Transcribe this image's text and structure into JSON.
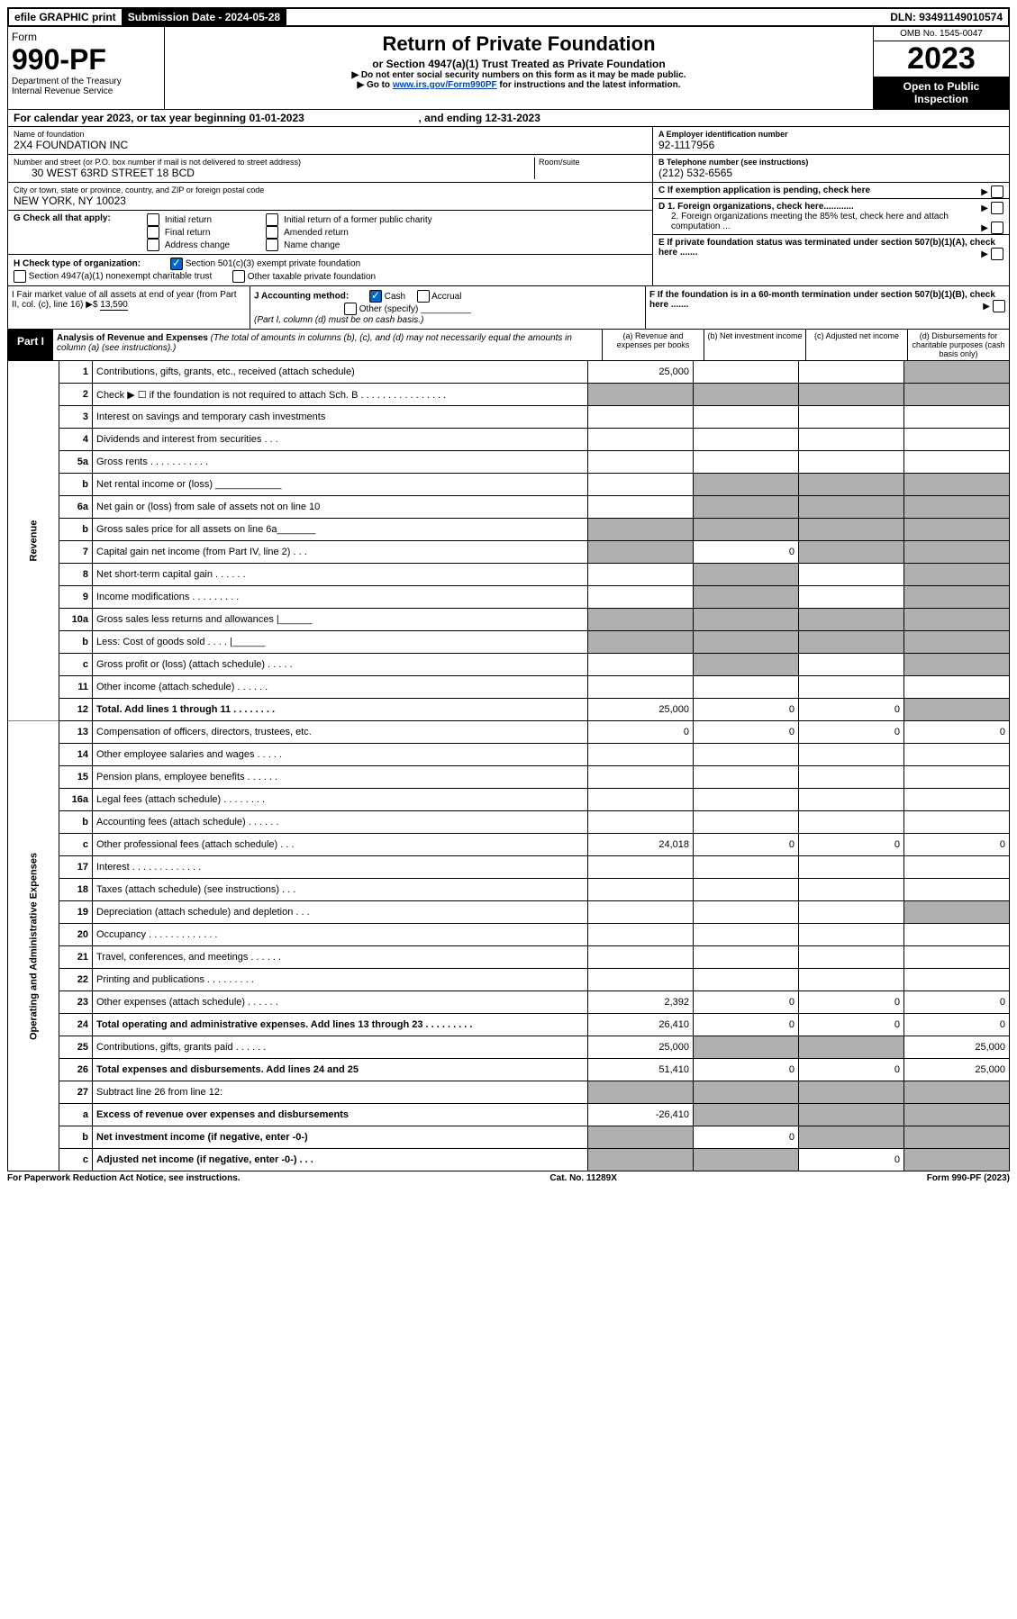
{
  "header": {
    "efile": "efile GRAPHIC print",
    "submission_label": "Submission Date - 2024-05-28",
    "dln": "DLN: 93491149010574"
  },
  "form": {
    "form_word": "Form",
    "number": "990-PF",
    "dept1": "Department of the Treasury",
    "dept2": "Internal Revenue Service",
    "title": "Return of Private Foundation",
    "subtitle": "or Section 4947(a)(1) Trust Treated as Private Foundation",
    "note1": "▶ Do not enter social security numbers on this form as it may be made public.",
    "note2_pre": "▶ Go to ",
    "note2_link": "www.irs.gov/Form990PF",
    "note2_post": " for instructions and the latest information.",
    "omb": "OMB No. 1545-0047",
    "year": "2023",
    "inspect1": "Open to Public",
    "inspect2": "Inspection"
  },
  "cal": {
    "text_pre": "For calendar year 2023, or tax year beginning 01-01-2023",
    "text_mid": ", and ending 12-31-2023"
  },
  "ident": {
    "name_lbl": "Name of foundation",
    "name": "2X4 FOUNDATION INC",
    "addr_lbl": "Number and street (or P.O. box number if mail is not delivered to street address)",
    "room_lbl": "Room/suite",
    "addr": "30 WEST 63RD STREET 18 BCD",
    "city_lbl": "City or town, state or province, country, and ZIP or foreign postal code",
    "city": "NEW YORK, NY  10023",
    "a_lbl": "A Employer identification number",
    "a_val": "92-1117956",
    "b_lbl": "B Telephone number (see instructions)",
    "b_val": "(212) 532-6565",
    "c_lbl": "C If exemption application is pending, check here",
    "d1_lbl": "D 1. Foreign organizations, check here............",
    "d2_lbl": "2. Foreign organizations meeting the 85% test, check here and attach computation ...",
    "e_lbl": "E  If private foundation status was terminated under section 507(b)(1)(A), check here .......",
    "f_lbl": "F  If the foundation is in a 60-month termination under section 507(b)(1)(B), check here .......",
    "g_lbl": "G Check all that apply:",
    "g_opts": [
      "Initial return",
      "Final return",
      "Address change",
      "Initial return of a former public charity",
      "Amended return",
      "Name change"
    ],
    "h_lbl": "H Check type of organization:",
    "h_opt1": "Section 501(c)(3) exempt private foundation",
    "h_opt2": "Section 4947(a)(1) nonexempt charitable trust",
    "h_opt3": "Other taxable private foundation",
    "i_lbl": "I Fair market value of all assets at end of year (from Part II, col. (c), line 16)",
    "i_val": "13,590",
    "j_lbl": "J Accounting method:",
    "j_cash": "Cash",
    "j_accr": "Accrual",
    "j_other": "Other (specify)",
    "j_note": "(Part I, column (d) must be on cash basis.)"
  },
  "part1": {
    "tag": "Part I",
    "title": "Analysis of Revenue and Expenses",
    "title_note": " (The total of amounts in columns (b), (c), and (d) may not necessarily equal the amounts in column (a) (see instructions).)",
    "col_a": "(a)  Revenue and expenses per books",
    "col_b": "(b)  Net investment income",
    "col_c": "(c)  Adjusted net income",
    "col_d": "(d)  Disbursements for charitable purposes (cash basis only)"
  },
  "vtabs": {
    "rev": "Revenue",
    "exp": "Operating and Administrative Expenses"
  },
  "rows": [
    {
      "n": "1",
      "d": "Contributions, gifts, grants, etc., received (attach schedule)",
      "a": "25,000",
      "dgrey": true
    },
    {
      "n": "2",
      "d": "Check ▶ ☐ if the foundation is not required to attach Sch. B   .  .  .  .  .  .  .  .  .  .  .  .  .  .  .  .",
      "allgrey": true
    },
    {
      "n": "3",
      "d": "Interest on savings and temporary cash investments"
    },
    {
      "n": "4",
      "d": "Dividends and interest from securities    .   .   ."
    },
    {
      "n": "5a",
      "d": "Gross rents     .   .   .   .   .   .   .   .   .   .   ."
    },
    {
      "n": "b",
      "d": "Net rental income or (loss)  ____________",
      "bcd_grey": true
    },
    {
      "n": "6a",
      "d": "Net gain or (loss) from sale of assets not on line 10",
      "bcd_grey": true
    },
    {
      "n": "b",
      "d": "Gross sales price for all assets on line 6a_______",
      "allgrey": true
    },
    {
      "n": "7",
      "d": "Capital gain net income (from Part IV, line 2)   .   .   .",
      "a_grey": true,
      "b": "0",
      "cd_grey": true
    },
    {
      "n": "8",
      "d": "Net short-term capital gain   .   .   .   .   .   .",
      "abd_grey": true
    },
    {
      "n": "9",
      "d": "Income modifications  .   .   .   .   .   .   .   .   .",
      "abd_grey": true
    },
    {
      "n": "10a",
      "d": "Gross sales less returns and allowances  |______",
      "allgrey": true
    },
    {
      "n": "b",
      "d": "Less: Cost of goods sold   .   .   .   .  |______",
      "allgrey": true
    },
    {
      "n": "c",
      "d": "Gross profit or (loss) (attach schedule)    .   .   .   .   .",
      "bd_grey": true
    },
    {
      "n": "11",
      "d": "Other income (attach schedule)    .   .   .   .   .   ."
    },
    {
      "n": "12",
      "d": "Total. Add lines 1 through 11   .   .   .   .   .   .   .   .",
      "bold": true,
      "a": "25,000",
      "b": "0",
      "c": "0",
      "dgrey": true
    },
    {
      "n": "13",
      "d": "Compensation of officers, directors, trustees, etc.",
      "a": "0",
      "b": "0",
      "c": "0",
      "dv": "0"
    },
    {
      "n": "14",
      "d": "Other employee salaries and wages   .   .   .   .   ."
    },
    {
      "n": "15",
      "d": "Pension plans, employee benefits  .   .   .   .   .   ."
    },
    {
      "n": "16a",
      "d": "Legal fees (attach schedule)  .   .   .   .   .   .   .   ."
    },
    {
      "n": "b",
      "d": "Accounting fees (attach schedule)  .   .   .   .   .   ."
    },
    {
      "n": "c",
      "d": "Other professional fees (attach schedule)    .   .   .",
      "a": "24,018",
      "b": "0",
      "c": "0",
      "dv": "0"
    },
    {
      "n": "17",
      "d": "Interest  .   .   .   .   .   .   .   .   .   .   .   .   ."
    },
    {
      "n": "18",
      "d": "Taxes (attach schedule) (see instructions)    .   .   ."
    },
    {
      "n": "19",
      "d": "Depreciation (attach schedule) and depletion   .   .   .",
      "dgrey": true
    },
    {
      "n": "20",
      "d": "Occupancy  .   .   .   .   .   .   .   .   .   .   .   .   ."
    },
    {
      "n": "21",
      "d": "Travel, conferences, and meetings  .   .   .   .   .   ."
    },
    {
      "n": "22",
      "d": "Printing and publications  .   .   .   .   .   .   .   .   ."
    },
    {
      "n": "23",
      "d": "Other expenses (attach schedule)  .   .   .   .   .   .",
      "a": "2,392",
      "b": "0",
      "c": "0",
      "dv": "0"
    },
    {
      "n": "24",
      "d": "Total operating and administrative expenses. Add lines 13 through 23   .   .   .   .   .   .   .   .   .",
      "bold": true,
      "a": "26,410",
      "b": "0",
      "c": "0",
      "dv": "0"
    },
    {
      "n": "25",
      "d": "Contributions, gifts, grants paid    .   .   .   .   .   .",
      "a": "25,000",
      "bc_grey": true,
      "dv": "25,000"
    },
    {
      "n": "26",
      "d": "Total expenses and disbursements. Add lines 24 and 25",
      "bold": true,
      "a": "51,410",
      "b": "0",
      "c": "0",
      "dv": "25,000"
    },
    {
      "n": "27",
      "d": "Subtract line 26 from line 12:",
      "allgrey": true
    },
    {
      "n": "a",
      "d": "Excess of revenue over expenses and disbursements",
      "bold": true,
      "a": "-26,410",
      "bcd_grey": true
    },
    {
      "n": "b",
      "d": "Net investment income (if negative, enter -0-)",
      "bold": true,
      "a_grey": true,
      "b": "0",
      "cd_grey": true
    },
    {
      "n": "c",
      "d": "Adjusted net income (if negative, enter -0-)   .   .   .",
      "bold": true,
      "ab_grey": true,
      "c": "0",
      "dgrey": true
    }
  ],
  "footer": {
    "left": "For Paperwork Reduction Act Notice, see instructions.",
    "mid": "Cat. No. 11289X",
    "right": "Form 990-PF (2023)"
  }
}
